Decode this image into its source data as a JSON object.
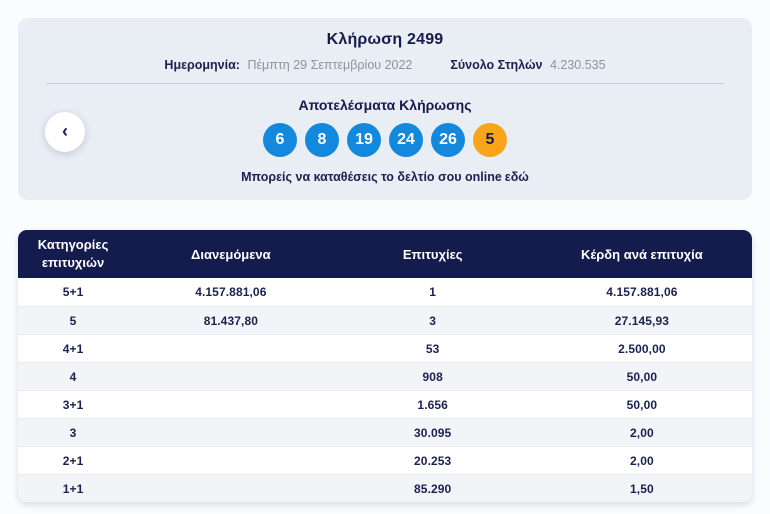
{
  "colors": {
    "accent_blue": "#1289dc",
    "accent_orange": "#f9a51a",
    "navy": "#141b4d",
    "card_bg": "#e9edf4",
    "row_alt_bg": "#f3f4f7"
  },
  "draw_card": {
    "title": "Κλήρωση 2499",
    "date_label": "Ημερομηνία:",
    "date_value": "Πέμπτη 29 Σεπτεμβρίου 2022",
    "columns_label": "Σύνολο Στηλών",
    "columns_value": "4.230.535",
    "results_title": "Αποτελέσματα Κλήρωσης",
    "numbers": [
      {
        "value": "6",
        "type": "main"
      },
      {
        "value": "8",
        "type": "main"
      },
      {
        "value": "19",
        "type": "main"
      },
      {
        "value": "24",
        "type": "main"
      },
      {
        "value": "26",
        "type": "main"
      },
      {
        "value": "5",
        "type": "joker"
      }
    ],
    "cta_text": "Μπορείς να καταθέσεις το δελτίο σου online",
    "cta_link_text": "εδώ",
    "prev_button_glyph": "‹"
  },
  "table": {
    "headers": [
      "Κατηγορίες επιτυχιών",
      "Διανεμόμενα",
      "Επιτυχίες",
      "Κέρδη ανά επιτυχία"
    ],
    "rows": [
      {
        "category": "5+1",
        "distributed": "4.157.881,06",
        "winners": "1",
        "prize": "4.157.881,06"
      },
      {
        "category": "5",
        "distributed": "81.437,80",
        "winners": "3",
        "prize": "27.145,93"
      },
      {
        "category": "4+1",
        "distributed": "",
        "winners": "53",
        "prize": "2.500,00"
      },
      {
        "category": "4",
        "distributed": "",
        "winners": "908",
        "prize": "50,00"
      },
      {
        "category": "3+1",
        "distributed": "",
        "winners": "1.656",
        "prize": "50,00"
      },
      {
        "category": "3",
        "distributed": "",
        "winners": "30.095",
        "prize": "2,00"
      },
      {
        "category": "2+1",
        "distributed": "",
        "winners": "20.253",
        "prize": "2,00"
      },
      {
        "category": "1+1",
        "distributed": "",
        "winners": "85.290",
        "prize": "1,50"
      }
    ]
  }
}
